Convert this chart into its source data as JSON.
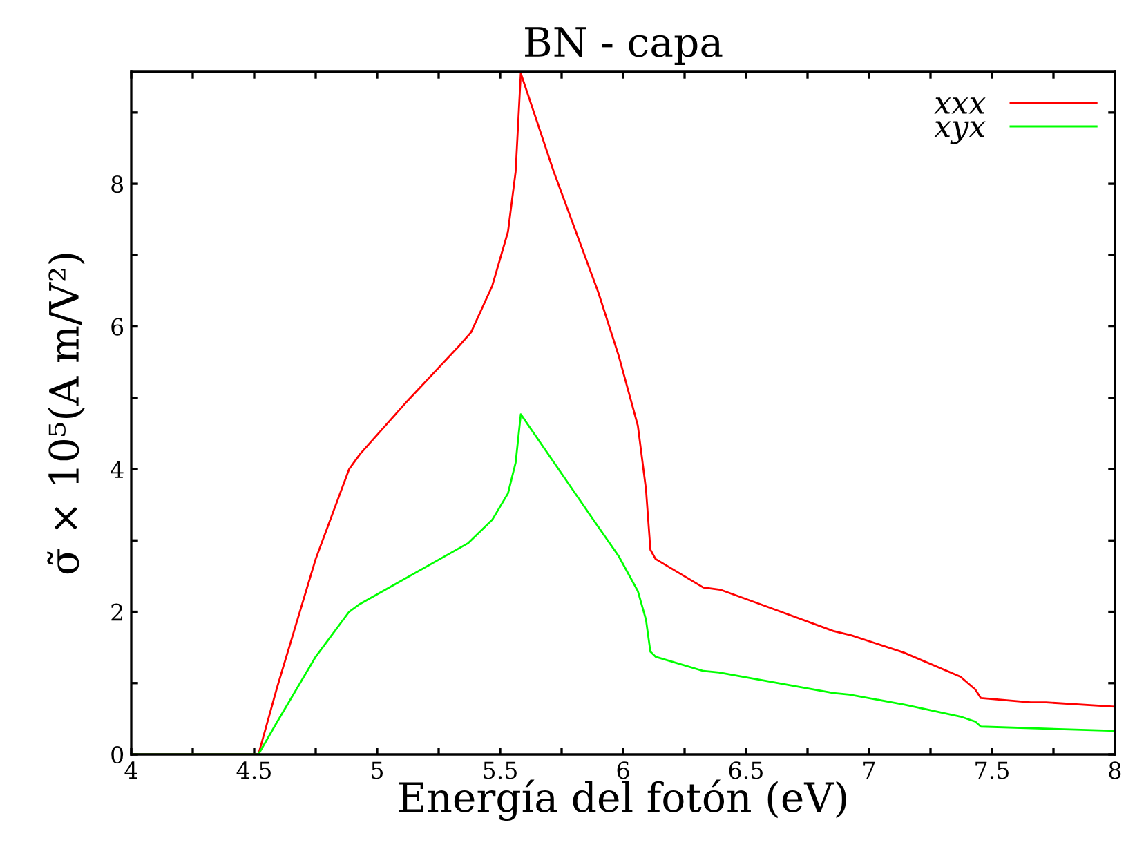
{
  "chart_data": {
    "type": "line",
    "title": "BN - capa",
    "xlabel": "Energía del fotón (eV)",
    "ylabel": "σ̃ × 10⁵(A m/V²)",
    "xlim": [
      4,
      8
    ],
    "ylim": [
      0,
      9.57
    ],
    "xticks": [
      4,
      {
        "value": 4.25,
        "label": null
      },
      4.5,
      {
        "value": 4.75,
        "label": null
      },
      5,
      {
        "value": 5.25,
        "label": null
      },
      5.5,
      {
        "value": 5.75,
        "label": null
      },
      6,
      {
        "value": 6.25,
        "label": null
      },
      6.5,
      {
        "value": 6.75,
        "label": null
      },
      7,
      {
        "value": 7.25,
        "label": null
      },
      7.5,
      {
        "value": 7.75,
        "label": null
      },
      8
    ],
    "yticks": [
      0,
      {
        "value": 1,
        "label": null
      },
      2,
      {
        "value": 3,
        "label": null
      },
      4,
      {
        "value": 5,
        "label": null
      },
      6,
      {
        "value": 7,
        "label": null
      },
      8,
      {
        "value": 9,
        "label": null
      }
    ],
    "grid": false,
    "legend": "top right",
    "marker": "none",
    "line_style": "solid",
    "series": [
      {
        "name": "xxx",
        "color": "#ff0000",
        "x": [
          4,
          4.517,
          4.594,
          4.75,
          4.886,
          4.93,
          5.124,
          5.331,
          5.382,
          5.468,
          5.532,
          5.563,
          5.584,
          5.718,
          5.899,
          5.982,
          6.06,
          6.093,
          6.111,
          6.132,
          6.326,
          6.395,
          6.571,
          6.855,
          6.928,
          7.14,
          7.372,
          7.432,
          7.455,
          7.657,
          7.72,
          8
        ],
        "values": [
          0,
          0,
          0.95,
          2.74,
          4.0,
          4.21,
          4.96,
          5.72,
          5.92,
          6.57,
          7.33,
          8.17,
          9.55,
          8.17,
          6.48,
          5.59,
          4.61,
          3.72,
          2.87,
          2.74,
          2.34,
          2.31,
          2.09,
          1.73,
          1.67,
          1.43,
          1.09,
          0.91,
          0.79,
          0.73,
          0.73,
          0.67
        ]
      },
      {
        "name": "xyx",
        "color": "#00ff00",
        "x": [
          4,
          4.517,
          4.594,
          4.75,
          4.886,
          4.93,
          5.369,
          5.468,
          5.532,
          5.563,
          5.584,
          5.873,
          5.982,
          6.06,
          6.093,
          6.111,
          6.132,
          6.326,
          6.39,
          6.855,
          6.92,
          7.14,
          7.372,
          7.432,
          7.455,
          8
        ],
        "values": [
          0,
          0,
          0.46,
          1.37,
          2.0,
          2.11,
          2.96,
          3.29,
          3.66,
          4.09,
          4.77,
          3.32,
          2.78,
          2.29,
          1.89,
          1.44,
          1.37,
          1.17,
          1.15,
          0.86,
          0.84,
          0.7,
          0.53,
          0.46,
          0.39,
          0.33
        ]
      }
    ]
  }
}
